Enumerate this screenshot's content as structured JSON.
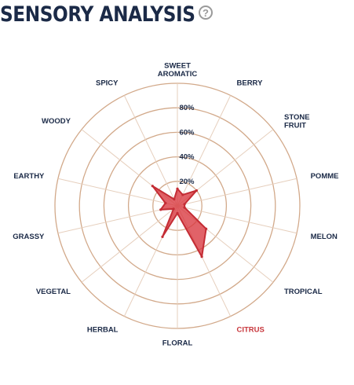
{
  "header": {
    "title": "SENSORY ANALYSIS",
    "help_glyph": "?"
  },
  "colors": {
    "title": "#1b2a47",
    "label": "#1b2a47",
    "highlight_label": "#c8373d",
    "ring": "#d2a98a",
    "spoke": "#e6cfbd",
    "fill": "#d9363e",
    "stroke": "#c42d35"
  },
  "chart_data": {
    "type": "radar",
    "title": "SENSORY ANALYSIS",
    "axes": [
      {
        "label": [
          "SWEET",
          "AROMATIC"
        ],
        "value": 14
      },
      {
        "label": [
          "BERRY"
        ],
        "value": 10
      },
      {
        "label": [
          "STONE",
          "FRUIT"
        ],
        "value": 20
      },
      {
        "label": [
          "POMME"
        ],
        "value": 6
      },
      {
        "label": [
          "MELON"
        ],
        "value": 6
      },
      {
        "label": [
          "TROPICAL"
        ],
        "value": 30
      },
      {
        "label": [
          "CITRUS"
        ],
        "value": 46,
        "highlight": true
      },
      {
        "label": [
          "FLORAL"
        ],
        "value": 6
      },
      {
        "label": [
          "HERBAL"
        ],
        "value": 28
      },
      {
        "label": [
          "VEGETAL"
        ],
        "value": 4
      },
      {
        "label": [
          "GRASSY"
        ],
        "value": 14
      },
      {
        "label": [
          "EARTHY"
        ],
        "value": 10
      },
      {
        "label": [
          "WOODY"
        ],
        "value": 26
      },
      {
        "label": [
          "SPICY"
        ],
        "value": 6
      }
    ],
    "rings": [
      20,
      40,
      60,
      80,
      100
    ],
    "tick_labels": [
      "20%",
      "40%",
      "60%",
      "80%"
    ],
    "rmax": 100
  }
}
